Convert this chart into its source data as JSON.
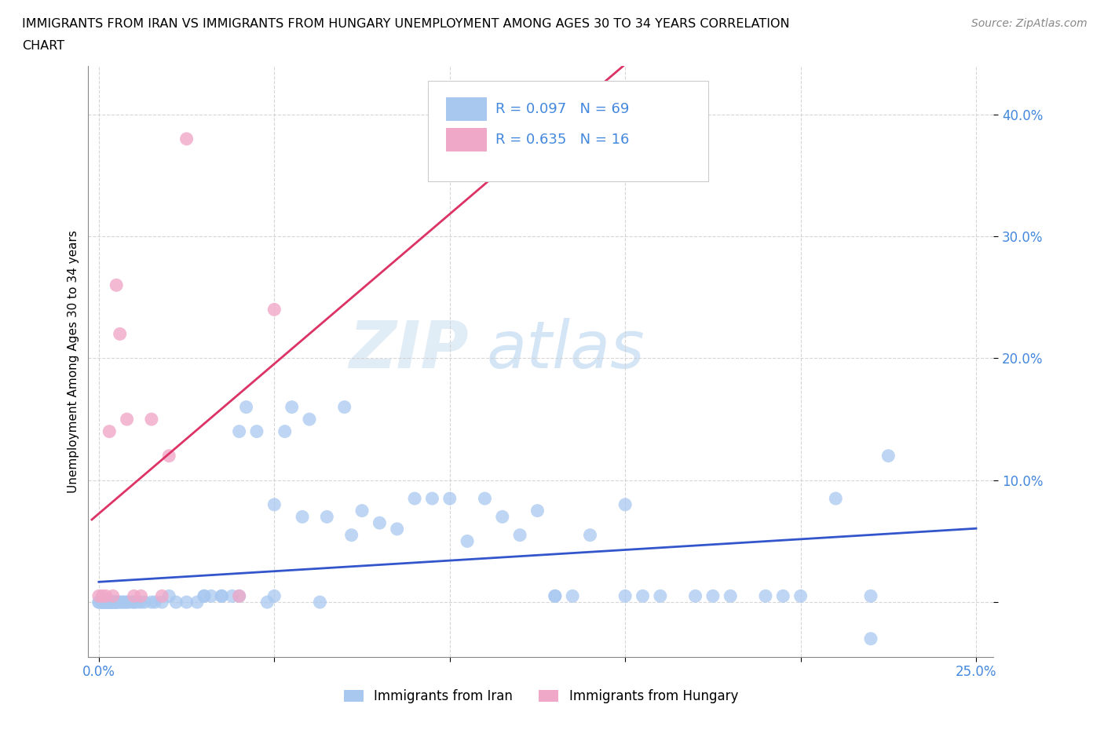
{
  "title_line1": "IMMIGRANTS FROM IRAN VS IMMIGRANTS FROM HUNGARY UNEMPLOYMENT AMONG AGES 30 TO 34 YEARS CORRELATION",
  "title_line2": "CHART",
  "source_text": "Source: ZipAtlas.com",
  "ylabel": "Unemployment Among Ages 30 to 34 years",
  "iran_color": "#a8c8f0",
  "hungary_color": "#f0a8c8",
  "iran_line_color": "#3355cc",
  "hungary_line_color": "#dd3366",
  "tick_color": "#4488dd",
  "iran_R": 0.097,
  "iran_N": 69,
  "hungary_R": 0.635,
  "hungary_N": 16,
  "watermark_zip": "ZIP",
  "watermark_atlas": "atlas",
  "xlim_min": -0.003,
  "xlim_max": 0.255,
  "ylim_min": -0.045,
  "ylim_max": 0.44,
  "iran_x": [
    0.0,
    0.001,
    0.001,
    0.002,
    0.002,
    0.003,
    0.003,
    0.003,
    0.004,
    0.004,
    0.005,
    0.005,
    0.006,
    0.007,
    0.008,
    0.009,
    0.01,
    0.01,
    0.011,
    0.012,
    0.013,
    0.015,
    0.016,
    0.018,
    0.02,
    0.022,
    0.025,
    0.028,
    0.03,
    0.032,
    0.035,
    0.038,
    0.04,
    0.042,
    0.045,
    0.048,
    0.05,
    0.053,
    0.055,
    0.058,
    0.06,
    0.063,
    0.065,
    0.07,
    0.072,
    0.075,
    0.08,
    0.085,
    0.09,
    0.095,
    0.1,
    0.105,
    0.11,
    0.115,
    0.12,
    0.125,
    0.13,
    0.135,
    0.14,
    0.15,
    0.155,
    0.16,
    0.17,
    0.18,
    0.19,
    0.2,
    0.21,
    0.22,
    0.225
  ],
  "iran_y": [
    0.0,
    0.0,
    0.0,
    0.0,
    0.0,
    0.0,
    0.0,
    0.0,
    0.0,
    0.0,
    0.0,
    0.0,
    0.0,
    0.0,
    0.0,
    0.0,
    0.0,
    0.0,
    0.0,
    0.0,
    0.0,
    0.0,
    0.0,
    0.0,
    0.005,
    0.0,
    0.0,
    0.0,
    0.005,
    0.005,
    0.005,
    0.005,
    0.14,
    0.16,
    0.14,
    0.0,
    0.08,
    0.14,
    0.16,
    0.07,
    0.15,
    0.0,
    0.07,
    0.16,
    0.055,
    0.075,
    0.065,
    0.06,
    0.085,
    0.085,
    0.085,
    0.05,
    0.085,
    0.07,
    0.055,
    0.075,
    0.005,
    0.005,
    0.055,
    0.08,
    0.005,
    0.005,
    0.005,
    0.005,
    0.005,
    0.005,
    0.085,
    0.005,
    0.12
  ],
  "hungary_x": [
    0.0,
    0.001,
    0.002,
    0.003,
    0.004,
    0.005,
    0.006,
    0.008,
    0.01,
    0.012,
    0.015,
    0.018,
    0.02,
    0.025,
    0.04,
    0.05
  ],
  "hungary_y": [
    0.005,
    0.005,
    0.005,
    0.14,
    0.005,
    0.26,
    0.22,
    0.15,
    0.005,
    0.005,
    0.15,
    0.005,
    0.12,
    0.38,
    0.005,
    0.24
  ],
  "extra_iran_x": [
    0.0,
    0.001,
    0.002,
    0.001,
    0.001,
    0.002,
    0.003,
    0.002,
    0.004,
    0.005,
    0.003,
    0.004,
    0.005,
    0.006,
    0.007,
    0.008,
    0.03,
    0.035,
    0.04,
    0.05,
    0.13,
    0.15,
    0.175,
    0.195,
    0.22
  ],
  "extra_iran_y": [
    0.0,
    0.0,
    0.0,
    0.0,
    0.0,
    0.0,
    0.0,
    0.0,
    0.0,
    0.0,
    0.0,
    0.0,
    0.0,
    0.0,
    0.0,
    0.0,
    0.005,
    0.005,
    0.005,
    0.005,
    0.005,
    0.005,
    0.005,
    0.005,
    -0.03
  ]
}
